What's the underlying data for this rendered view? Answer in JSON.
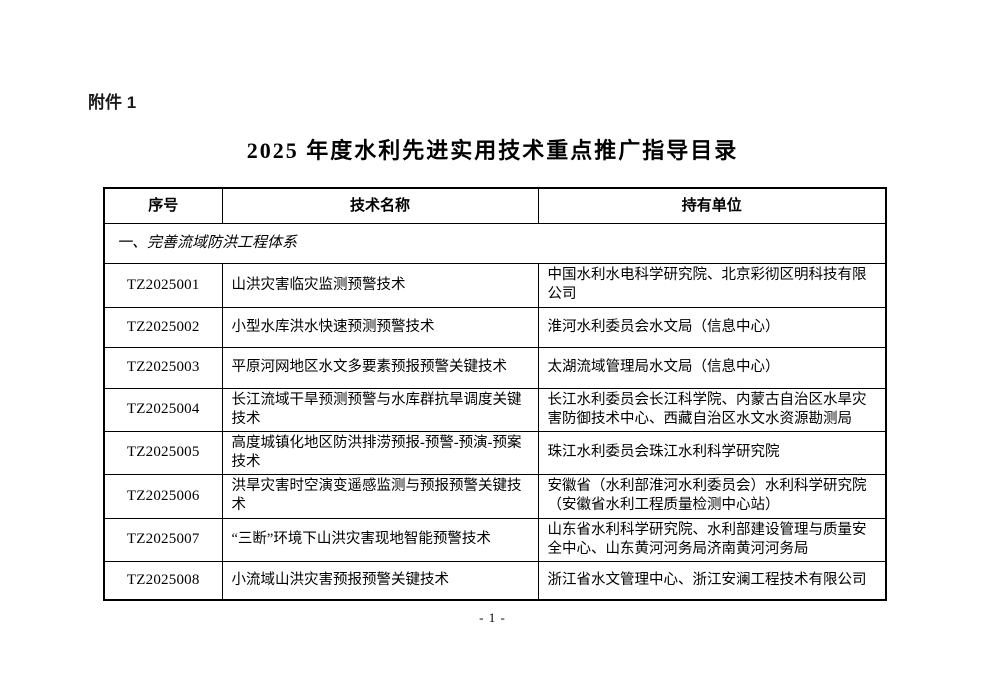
{
  "document": {
    "attachment_label": "附件 1",
    "title": "2025 年度水利先进实用技术重点推广指导目录",
    "page_number": "- 1 -"
  },
  "table": {
    "headers": [
      "序号",
      "技术名称",
      "持有单位"
    ],
    "section": "一、完善流域防洪工程体系",
    "rows": [
      {
        "id": "TZ2025001",
        "name": "山洪灾害临灾监测预警技术",
        "unit": "中国水利水电科学研究院、北京彩彻区明科技有限公司"
      },
      {
        "id": "TZ2025002",
        "name": "小型水库洪水快速预测预警技术",
        "unit": "淮河水利委员会水文局（信息中心）"
      },
      {
        "id": "TZ2025003",
        "name": "平原河网地区水文多要素预报预警关键技术",
        "unit": "太湖流域管理局水文局（信息中心）"
      },
      {
        "id": "TZ2025004",
        "name": "长江流域干旱预测预警与水库群抗旱调度关键技术",
        "unit": "长江水利委员会长江科学院、内蒙古自治区水旱灾害防御技术中心、西藏自治区水文水资源勘测局"
      },
      {
        "id": "TZ2025005",
        "name": "高度城镇化地区防洪排涝预报-预警-预演-预案技术",
        "unit": "珠江水利委员会珠江水利科学研究院"
      },
      {
        "id": "TZ2025006",
        "name": "洪旱灾害时空演变遥感监测与预报预警关键技术",
        "unit": "安徽省（水利部淮河水利委员会）水利科学研究院（安徽省水利工程质量检测中心站）"
      },
      {
        "id": "TZ2025007",
        "name": "“三断”环境下山洪灾害现地智能预警技术",
        "unit": "山东省水利科学研究院、水利部建设管理与质量安全中心、山东黄河河务局济南黄河河务局"
      },
      {
        "id": "TZ2025008",
        "name": "小流域山洪灾害预报预警关键技术",
        "unit": "浙江省水文管理中心、浙江安澜工程技术有限公司"
      }
    ]
  }
}
